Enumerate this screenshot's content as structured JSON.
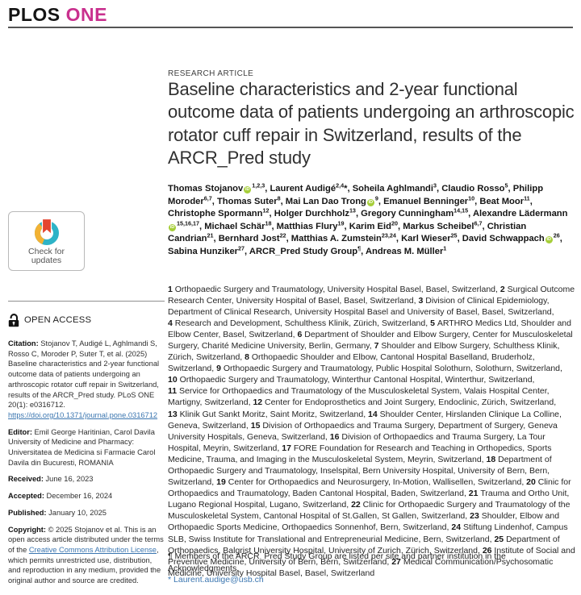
{
  "header": {
    "brand_plos": "PLOS",
    "brand_one": "ONE"
  },
  "colors": {
    "brand_magenta": "#c9308e",
    "link_blue": "#3b76b0",
    "orcid_green": "#a6ce39",
    "crossmark_teal": "#2db3c7",
    "crossmark_yellow": "#f2b234",
    "crossmark_red": "#e4452f"
  },
  "sidebar": {
    "check_for_updates": {
      "line1": "Check for",
      "line2": "updates"
    },
    "open_access_label": "OPEN ACCESS",
    "citation": {
      "label": "Citation:",
      "text": "Stojanov T, Audigé L, Aghlmandi S, Rosso C, Moroder P, Suter T, et al. (2025) Baseline characteristics and 2-year functional outcome data of patients undergoing an arthroscopic rotator cuff repair in Switzerland, results of the ARCR_Pred study. PLoS ONE 20(1): e0316712. ",
      "doi_link": "https://doi.org/10.1371/journal.pone.0316712"
    },
    "editor": {
      "label": "Editor:",
      "text": "Emil George Haritinian, Carol Davila University of Medicine and Pharmacy: Universitatea de Medicina si Farmacie Carol Davila din Bucuresti, ROMANIA"
    },
    "received": {
      "label": "Received:",
      "text": "June 16, 2023"
    },
    "accepted": {
      "label": "Accepted:",
      "text": "December 16, 2024"
    },
    "published": {
      "label": "Published:",
      "text": "January 10, 2025"
    },
    "copyright": {
      "label": "Copyright:",
      "text_before_link": "© 2025 Stojanov et al. This is an open access article distributed under the terms of the ",
      "license_link": "Creative Commons Attribution License",
      "text_after_link": ", which permits unrestricted use, distribution, and reproduction in any medium, provided the original author and source are credited."
    }
  },
  "article": {
    "kicker": "RESEARCH ARTICLE",
    "title": "Baseline characteristics and 2-year functional outcome data of patients undergoing an arthroscopic rotator cuff repair in Switzerland, results of the ARCR_Pred study",
    "authors": [
      {
        "name": "Thomas Stojanov",
        "orcid": true,
        "sup": "1,2,3"
      },
      {
        "name": "Laurent Audigé",
        "sup": "2,4",
        "star": true
      },
      {
        "name": "Soheila Aghlmandi",
        "sup": "3"
      },
      {
        "name": "Claudio Rosso",
        "sup": "5"
      },
      {
        "name": "Philipp Moroder",
        "sup": "6,7"
      },
      {
        "name": "Thomas Suter",
        "sup": "8"
      },
      {
        "name": "Mai Lan Dao Trong",
        "orcid": true,
        "sup": "9"
      },
      {
        "name": "Emanuel Benninger",
        "sup": "10"
      },
      {
        "name": "Beat Moor",
        "sup": "11"
      },
      {
        "name": "Christophe Spormann",
        "sup": "12"
      },
      {
        "name": "Holger Durchholz",
        "sup": "13"
      },
      {
        "name": "Gregory Cunningham",
        "sup": "14,15"
      },
      {
        "name": "Alexandre Lädermann",
        "orcid": true,
        "sup": "15,16,17"
      },
      {
        "name": "Michael Schär",
        "sup": "18"
      },
      {
        "name": "Matthias Flury",
        "sup": "19"
      },
      {
        "name": "Karim Eid",
        "sup": "20"
      },
      {
        "name": "Markus Scheibel",
        "sup": "6,7"
      },
      {
        "name": "Christian Candrian",
        "sup": "21"
      },
      {
        "name": "Bernhard Jost",
        "sup": "22"
      },
      {
        "name": "Matthias A. Zumstein",
        "sup": "23,24"
      },
      {
        "name": "Karl Wieser",
        "sup": "25"
      },
      {
        "name": "David Schwappach",
        "orcid": true,
        "sup": "26"
      },
      {
        "name": "Sabina Hunziker",
        "sup": "27"
      },
      {
        "name": "ARCR_Pred Study Group",
        "sup": "¶"
      },
      {
        "name": "Andreas M. Müller",
        "sup": "1"
      }
    ],
    "affiliations": [
      {
        "num": "1",
        "text": "Orthopaedic Surgery and Traumatology, University Hospital Basel, Basel, Switzerland"
      },
      {
        "num": "2",
        "text": "Surgical Outcome Research Center, University Hospital of Basel, Basel, Switzerland"
      },
      {
        "num": "3",
        "text": "Division of Clinical Epidemiology, Department of Clinical Research, University Hospital Basel and University of Basel, Basel, Switzerland"
      },
      {
        "num": "4",
        "text": "Research and Development, Schulthess Klinik, Zürich, Switzerland"
      },
      {
        "num": "5",
        "text": "ARTHRO Medics Ltd, Shoulder and Elbow Center, Basel, Switzerland"
      },
      {
        "num": "6",
        "text": "Department of Shoulder and Elbow Surgery, Center for Musculoskeletal Surgery, Charité Medicine University, Berlin, Germany"
      },
      {
        "num": "7",
        "text": "Shoulder and Elbow Surgery, Schulthess Klinik, Zürich, Switzerland"
      },
      {
        "num": "8",
        "text": "Orthopaedic Shoulder and Elbow, Cantonal Hospital Baselland, Bruderholz, Switzerland"
      },
      {
        "num": "9",
        "text": "Orthopaedic Surgery and Traumatology, Public Hospital Solothurn, Solothurn, Switzerland"
      },
      {
        "num": "10",
        "text": "Orthopaedic Surgery and Traumatology, Winterthur Cantonal Hospital, Winterthur, Switzerland"
      },
      {
        "num": "11",
        "text": "Service for Orthopaedics and Traumatology of the Musculoskeletal System, Valais Hospital Center, Martigny, Switzerland"
      },
      {
        "num": "12",
        "text": "Center for Endoprosthetics and Joint Surgery, Endoclinic, Zürich, Switzerland"
      },
      {
        "num": "13",
        "text": "Klinik Gut Sankt Moritz, Saint Moritz, Switzerland"
      },
      {
        "num": "14",
        "text": "Shoulder Center, Hirslanden Clinique La Colline, Geneva, Switzerland"
      },
      {
        "num": "15",
        "text": "Division of Orthopaedics and Trauma Surgery, Department of Surgery, Geneva University Hospitals, Geneva, Switzerland"
      },
      {
        "num": "16",
        "text": "Division of Orthopaedics and Trauma Surgery, La Tour Hospital, Meyrin, Switzerland"
      },
      {
        "num": "17",
        "text": "FORE Foundation for Research and Teaching in Orthopedics, Sports Medicine, Trauma, and Imaging in the Musculoskeletal System, Meyrin, Switzerland"
      },
      {
        "num": "18",
        "text": "Department of Orthopaedic Surgery and Traumatology, Inselspital, Bern University Hospital, University of Bern, Bern, Switzerland"
      },
      {
        "num": "19",
        "text": "Center for Orthopaedics and Neurosurgery, In-Motion, Wallisellen, Switzerland"
      },
      {
        "num": "20",
        "text": "Clinic for Orthopaedics and Traumatology, Baden Cantonal Hospital, Baden, Switzerland"
      },
      {
        "num": "21",
        "text": "Trauma and Ortho Unit, Lugano Regional Hospital, Lugano, Switzerland"
      },
      {
        "num": "22",
        "text": "Clinic for Orthopaedic Surgery and Traumatology of the Musculoskeletal System, Cantonal Hospital of St.Gallen, St Gallen, Switzerland"
      },
      {
        "num": "23",
        "text": "Shoulder, Elbow and Orthopaedic Sports Medicine, Orthopaedics Sonnenhof, Bern, Switzerland"
      },
      {
        "num": "24",
        "text": "Stiftung Lindenhof, Campus SLB, Swiss Institute for Translational and Entrepreneurial Medicine, Bern, Switzerland"
      },
      {
        "num": "25",
        "text": "Department of Orthopaedics, Balgrist University Hospital, University of Zurich, Zürich, Switzerland"
      },
      {
        "num": "26",
        "text": "Institute of Social and Preventive Medicine, University of Bern, Bern, Switzerland"
      },
      {
        "num": "27",
        "text": "Medical Communication/Psychosomatic Medicine, University Hospital Basel, Basel, Switzerland"
      }
    ],
    "footnotes": {
      "group_note": "¶ Members of the ARCR_Pred Study Group are listed per site and partner institution in the Acknowledgments.",
      "email_star": "* ",
      "email": "Laurent.audige@usb.ch"
    }
  }
}
